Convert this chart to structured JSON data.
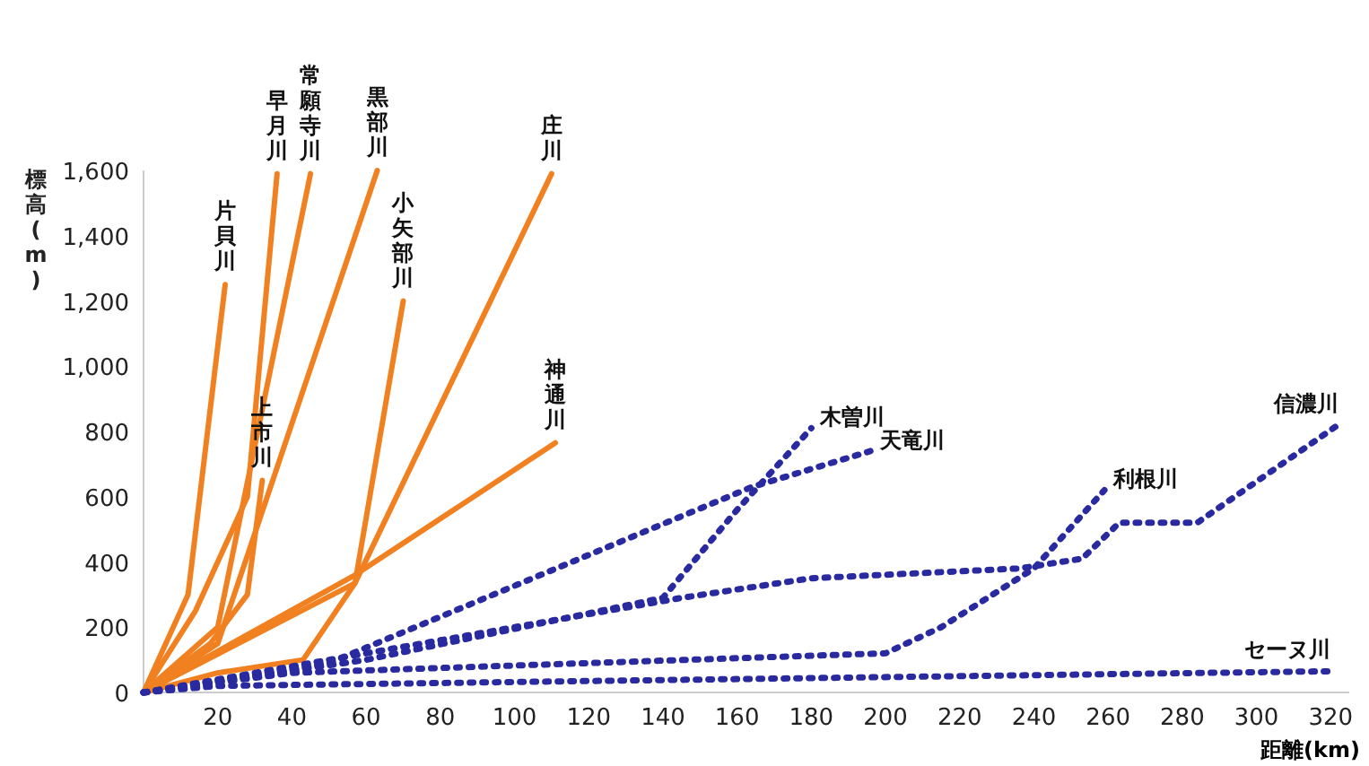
{
  "chart_data": {
    "type": "line",
    "xlabel": "距離(km)",
    "ylabel": "標高(m)",
    "xlim": [
      0,
      325
    ],
    "ylim": [
      0,
      1600
    ],
    "xticks": [
      20,
      40,
      60,
      80,
      100,
      120,
      140,
      160,
      180,
      200,
      220,
      240,
      260,
      280,
      300,
      320
    ],
    "yticks": [
      0,
      200,
      400,
      600,
      800,
      {
        "value": 1000,
        "label": "1,000"
      },
      {
        "value": 1200,
        "label": "1,200"
      },
      {
        "value": 1400,
        "label": "1,400"
      },
      {
        "value": 1600,
        "label": "1,600"
      }
    ],
    "grid": false,
    "series": [
      {
        "name": "片貝川",
        "color": "#f08020",
        "line_style": "solid",
        "x": [
          0,
          12,
          22
        ],
        "values": [
          0,
          300,
          1250
        ]
      },
      {
        "name": "早月川",
        "color": "#f08020",
        "line_style": "solid",
        "x": [
          0,
          14,
          28,
          36
        ],
        "values": [
          0,
          250,
          600,
          1590
        ]
      },
      {
        "name": "常願寺川",
        "color": "#f08020",
        "line_style": "solid",
        "x": [
          0,
          20,
          45
        ],
        "values": [
          0,
          200,
          1590
        ]
      },
      {
        "name": "黒部川",
        "color": "#f08020",
        "line_style": "solid",
        "x": [
          0,
          20,
          63
        ],
        "values": [
          0,
          150,
          1600
        ]
      },
      {
        "name": "上市川",
        "color": "#f08020",
        "line_style": "solid",
        "x": [
          0,
          18,
          28,
          32
        ],
        "values": [
          0,
          150,
          300,
          650
        ]
      },
      {
        "name": "小矢部川",
        "color": "#f08020",
        "line_style": "solid",
        "x": [
          0,
          20,
          43,
          57,
          70
        ],
        "values": [
          0,
          60,
          100,
          335,
          1200
        ]
      },
      {
        "name": "庄川",
        "color": "#f08020",
        "line_style": "solid",
        "x": [
          0,
          57,
          110
        ],
        "values": [
          0,
          335,
          1590
        ]
      },
      {
        "name": "神通川",
        "color": "#f08020",
        "line_style": "solid",
        "x": [
          0,
          57,
          111
        ],
        "values": [
          0,
          360,
          765
        ]
      },
      {
        "name": "木曽川",
        "color": "#2a2aa0",
        "line_style": "dotted",
        "x": [
          0,
          60,
          140,
          160,
          180
        ],
        "values": [
          0,
          100,
          290,
          560,
          810
        ]
      },
      {
        "name": "天竜川",
        "color": "#2a2aa0",
        "line_style": "dotted",
        "x": [
          0,
          50,
          164,
          196
        ],
        "values": [
          0,
          90,
          630,
          740
        ]
      },
      {
        "name": "利根川",
        "color": "#2a2aa0",
        "line_style": "dotted",
        "x": [
          0,
          40,
          200,
          215,
          240,
          259
        ],
        "values": [
          0,
          60,
          120,
          200,
          380,
          620
        ]
      },
      {
        "name": "信濃川",
        "color": "#2a2aa0",
        "line_style": "dotted",
        "x": [
          0,
          60,
          145,
          180,
          236,
          253,
          263,
          284,
          322
        ],
        "values": [
          0,
          120,
          290,
          350,
          380,
          410,
          520,
          520,
          820
        ]
      },
      {
        "name": "セーヌ川",
        "color": "#2a2aa0",
        "line_style": "dotted",
        "x": [
          0,
          20,
          320
        ],
        "values": [
          0,
          20,
          65
        ]
      }
    ]
  }
}
